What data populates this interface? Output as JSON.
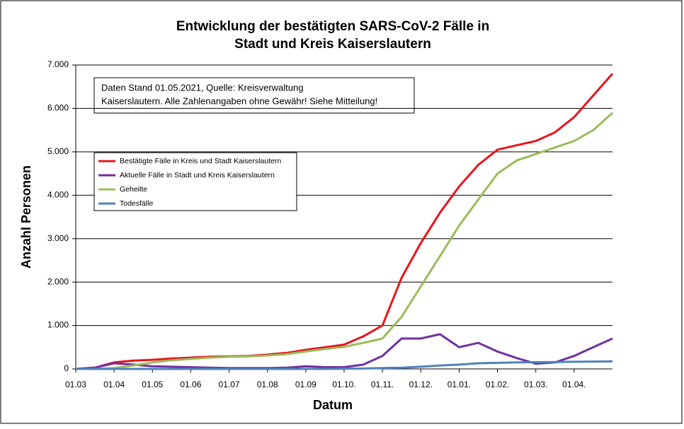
{
  "chart_data": {
    "type": "line",
    "title": "Entwicklung der bestätigten SARS-CoV-2 Fälle in",
    "subtitle": "Stadt und Kreis Kaiserslautern",
    "x_label": "Datum",
    "y_label": "Anzahl Personen",
    "annotation": [
      "Daten Stand 01.05.2021, Quelle: Kreisverwaltung",
      "Kaiserslautern. Alle Zahlenangaben ohne Gewähr! Siehe Mitteilung!"
    ],
    "categories": [
      "01.03",
      null,
      "01.04",
      null,
      "01.05",
      null,
      "01.06",
      null,
      "01.07",
      null,
      "01.08",
      null,
      "01.09",
      null,
      "01.10.",
      null,
      "01.11.",
      null,
      "01.12.",
      null,
      "01.01.",
      null,
      "01.02.",
      null,
      "01.03.",
      null,
      "01.04.",
      null,
      null
    ],
    "series": [
      {
        "name": "Bestätigte Fälle in Kreis und Stadt Kaiserslautern",
        "color": "#e8141c",
        "values": [
          0,
          30,
          150,
          190,
          210,
          240,
          260,
          280,
          290,
          300,
          330,
          370,
          440,
          500,
          560,
          750,
          1000,
          2100,
          2900,
          3600,
          4200,
          4700,
          5050,
          5150,
          5250,
          5450,
          5800,
          6300,
          6800
        ]
      },
      {
        "name": "Aktuelle Fälle in Stadt und Kreis Kaiserslautern",
        "color": "#7030a0",
        "values": [
          0,
          30,
          130,
          100,
          60,
          50,
          40,
          30,
          20,
          20,
          20,
          30,
          60,
          40,
          40,
          100,
          300,
          700,
          700,
          800,
          500,
          600,
          400,
          250,
          120,
          150,
          300,
          500,
          700
        ]
      },
      {
        "name": "Geheilte",
        "color": "#9bbb59",
        "values": [
          0,
          0,
          20,
          80,
          150,
          200,
          230,
          260,
          280,
          290,
          310,
          340,
          400,
          460,
          510,
          600,
          700,
          1200,
          1900,
          2600,
          3300,
          3900,
          4500,
          4800,
          4950,
          5100,
          5250,
          5500,
          5900
        ]
      },
      {
        "name": "Todesfälle",
        "color": "#4f81bd",
        "values": [
          0,
          0,
          0,
          0,
          0,
          0,
          0,
          0,
          0,
          0,
          0,
          0,
          0,
          0,
          5,
          10,
          20,
          30,
          50,
          80,
          100,
          130,
          140,
          150,
          155,
          160,
          165,
          170,
          175
        ]
      }
    ],
    "ylim": [
      0,
      7000
    ],
    "yticks": [
      0,
      {
        "value": 1000,
        "label": "1.000"
      },
      {
        "value": 2000,
        "label": "2.000"
      },
      {
        "value": 3000,
        "label": "3.000"
      },
      {
        "value": 4000,
        "label": "4.000"
      },
      {
        "value": 5000,
        "label": "5.000"
      },
      {
        "value": 6000,
        "label": "6.000"
      },
      {
        "value": 7000,
        "label": "7.000"
      }
    ],
    "grid": true
  }
}
